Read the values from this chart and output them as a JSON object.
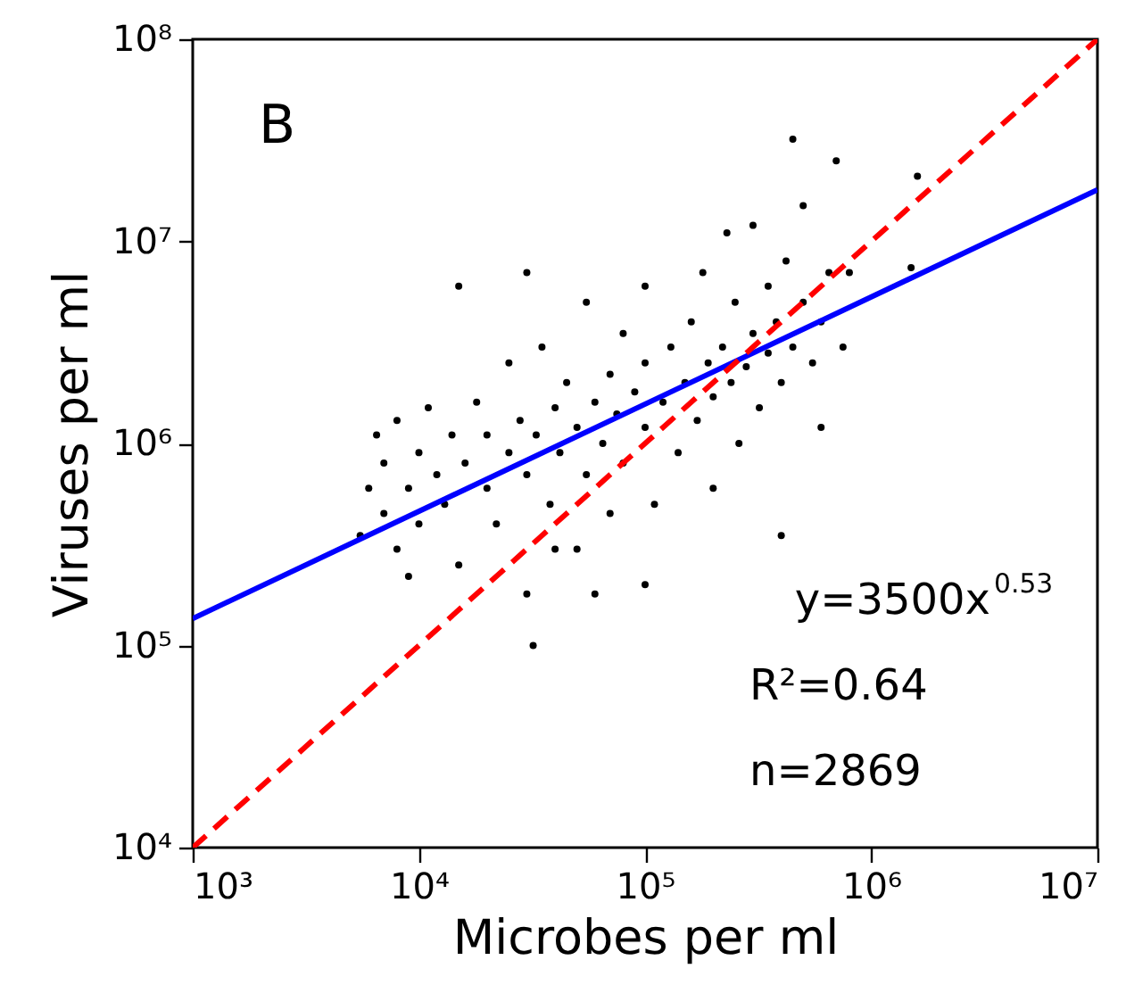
{
  "chart_data": {
    "type": "scatter",
    "xlabel": "Microbes per ml",
    "ylabel": "Viruses per ml",
    "xlim": [
      1000,
      10000000
    ],
    "ylim": [
      10000,
      100000000
    ],
    "xticks": [
      {
        "value": 1000,
        "label": "10³"
      },
      {
        "value": 10000,
        "label": "10⁴"
      },
      {
        "value": 100000,
        "label": "10⁵"
      },
      {
        "value": 1000000,
        "label": "10⁶"
      },
      {
        "value": 10000000,
        "label": "10⁷"
      }
    ],
    "yticks": [
      {
        "value": 10000,
        "label": "10⁴"
      },
      {
        "value": 100000,
        "label": "10⁵"
      },
      {
        "value": 1000000,
        "label": "10⁶"
      },
      {
        "value": 10000000,
        "label": "10⁷"
      },
      {
        "value": 100000000,
        "label": "10⁸"
      }
    ],
    "log": "xy",
    "grid": false,
    "annotations": [
      "B",
      "y=3500x$^{0.53}$",
      "R²=0.64",
      "n=2869"
    ],
    "series": [
      {
        "marker": "circle",
        "color": "#000000",
        "x": [
          5500,
          6000,
          6500,
          7000,
          7000,
          8000,
          8000,
          9000,
          10000,
          10000,
          11000,
          12000,
          13000,
          14000,
          15000,
          16000,
          18000,
          20000,
          20000,
          22000,
          25000,
          25000,
          28000,
          30000,
          30000,
          33000,
          35000,
          38000,
          40000,
          42000,
          45000,
          50000,
          50000,
          55000,
          55000,
          60000,
          65000,
          70000,
          70000,
          75000,
          80000,
          80000,
          90000,
          100000,
          100000,
          100000,
          100000,
          110000,
          120000,
          130000,
          140000,
          150000,
          160000,
          170000,
          180000,
          190000,
          200000,
          200000,
          220000,
          240000,
          250000,
          260000,
          280000,
          300000,
          300000,
          320000,
          350000,
          350000,
          380000,
          400000,
          400000,
          420000,
          450000,
          450000,
          500000,
          500000,
          550000,
          600000,
          600000,
          650000,
          700000,
          750000,
          800000,
          60000,
          15000,
          30000,
          32000,
          40000,
          9000,
          230000,
          1600000,
          1500000
        ],
        "values": [
          350000,
          600000,
          1100000,
          450000,
          800000,
          300000,
          1300000,
          600000,
          900000,
          400000,
          1500000,
          700000,
          500000,
          1100000,
          250000,
          800000,
          1600000,
          600000,
          1100000,
          400000,
          900000,
          2500000,
          1300000,
          700000,
          180000,
          1100000,
          3000000,
          500000,
          1500000,
          900000,
          2000000,
          1200000,
          300000,
          5000000,
          700000,
          1600000,
          1000000,
          2200000,
          450000,
          1400000,
          3500000,
          800000,
          1800000,
          1200000,
          2500000,
          6000000,
          200000,
          500000,
          1600000,
          3000000,
          900000,
          2000000,
          4000000,
          1300000,
          7000000,
          2500000,
          1700000,
          600000,
          3000000,
          2000000,
          5000000,
          1000000,
          2400000,
          3500000,
          12000000,
          1500000,
          6000000,
          2800000,
          4000000,
          350000,
          2000000,
          8000000,
          3000000,
          32000000,
          5000000,
          15000000,
          2500000,
          4000000,
          1200000,
          7000000,
          25000000,
          3000000,
          7000000,
          180000,
          6000000,
          7000000,
          100000,
          300000,
          220000,
          11000000,
          21000000,
          7400000
        ]
      },
      {
        "type": "line",
        "color": "#0000ff",
        "line_style": "solid",
        "x": [
          1000,
          10000000
        ],
        "values": [
          136000,
          18000000
        ]
      },
      {
        "type": "line",
        "color": "#ff0000",
        "line_style": "dashed",
        "x": [
          1000,
          10000000
        ],
        "values": [
          10000,
          100000000
        ]
      }
    ]
  }
}
